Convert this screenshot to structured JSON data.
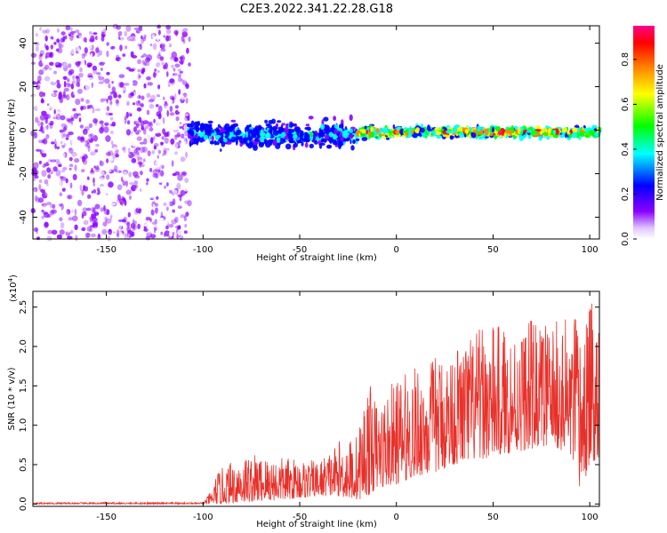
{
  "title": "C2E3.2022.341.22.28.G18",
  "chart_data": [
    {
      "type": "heatmap",
      "xlabel": "Height of straight line (km)",
      "ylabel": "Frequency (Hz)",
      "xlim": [
        -188,
        105
      ],
      "ylim": [
        -50,
        48
      ],
      "xticks": [
        -150,
        -100,
        -50,
        0,
        50,
        100
      ],
      "yticks": [
        -40,
        -20,
        0,
        20,
        40
      ],
      "colorbar": {
        "label": "Normalized spectral amplitude",
        "range": [
          0,
          0.95
        ],
        "ticks": [
          0.0,
          0.2,
          0.4,
          0.6,
          0.8
        ],
        "colormap": [
          "#ffffff",
          "#8a00ff",
          "#0000ff",
          "#00ffff",
          "#00ff00",
          "#ffff00",
          "#ff8800",
          "#ff0000",
          "#ff0088"
        ]
      },
      "regions": [
        {
          "x": [
            -188,
            -107
          ],
          "freq_spread": [
            -50,
            48
          ],
          "amplitude": [
            0.02,
            0.12
          ],
          "desc": "noise"
        },
        {
          "x": [
            -107,
            -20
          ],
          "freq_center": -2,
          "freq_halfwidth": [
            4,
            10
          ],
          "amplitude": [
            0.15,
            0.45
          ]
        },
        {
          "x": [
            -20,
            105
          ],
          "freq_center": -1,
          "freq_halfwidth": [
            2,
            4
          ],
          "amplitude": [
            0.25,
            0.95
          ]
        }
      ]
    },
    {
      "type": "line",
      "xlabel": "Height of straight line (km)",
      "ylabel": "SNR (10 * v/v)",
      "y_multiplier": "(x10^4)",
      "xlim": [
        -188,
        105
      ],
      "ylim": [
        -0.03,
        2.7
      ],
      "xticks": [
        -150,
        -100,
        -50,
        0,
        50,
        100
      ],
      "yticks": [
        0.0,
        0.5,
        1.0,
        1.5,
        2.0,
        2.5
      ],
      "color": "#e8302a",
      "envelope": {
        "x": [
          -188,
          -100,
          -95,
          -93,
          -80,
          -60,
          -40,
          -30,
          -20,
          -15,
          -10,
          0,
          10,
          20,
          30,
          40,
          50,
          60,
          70,
          80,
          90,
          95,
          100,
          105
        ],
        "min": [
          0.0,
          0.0,
          0.0,
          0.0,
          0.02,
          0.05,
          0.1,
          0.1,
          0.05,
          0.1,
          0.2,
          0.25,
          0.35,
          0.4,
          0.5,
          0.55,
          0.6,
          0.65,
          0.7,
          0.75,
          0.6,
          0.1,
          0.5,
          0.6
        ],
        "max": [
          0.02,
          0.02,
          0.2,
          0.4,
          0.65,
          0.6,
          0.55,
          0.8,
          0.9,
          1.6,
          1.3,
          1.6,
          1.75,
          1.9,
          2.0,
          2.2,
          2.3,
          2.25,
          2.35,
          2.3,
          2.4,
          2.45,
          2.55,
          2.6
        ]
      }
    }
  ]
}
